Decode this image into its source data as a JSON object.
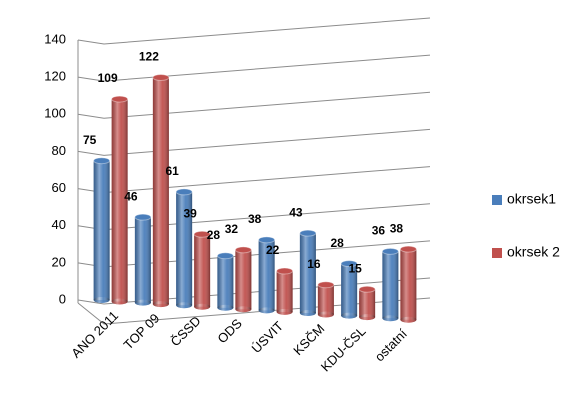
{
  "chart_data": {
    "type": "bar",
    "categories": [
      "ANO 2011",
      "TOP 09",
      "ČSSD",
      "ODS",
      "ÚSVIT",
      "KSČM",
      "KDU-ČSL",
      "ostatní"
    ],
    "series": [
      {
        "name": "okrsek1",
        "color": "#4a7ebb",
        "values": [
          75,
          46,
          61,
          28,
          38,
          43,
          28,
          36
        ]
      },
      {
        "name": "okrsek 2",
        "color": "#c0504d",
        "values": [
          109,
          122,
          39,
          32,
          22,
          16,
          15,
          38
        ]
      }
    ],
    "ylim": [
      0,
      140
    ],
    "yticks": [
      0,
      20,
      40,
      60,
      80,
      100,
      120,
      140
    ],
    "grid": true,
    "legend": "right"
  }
}
